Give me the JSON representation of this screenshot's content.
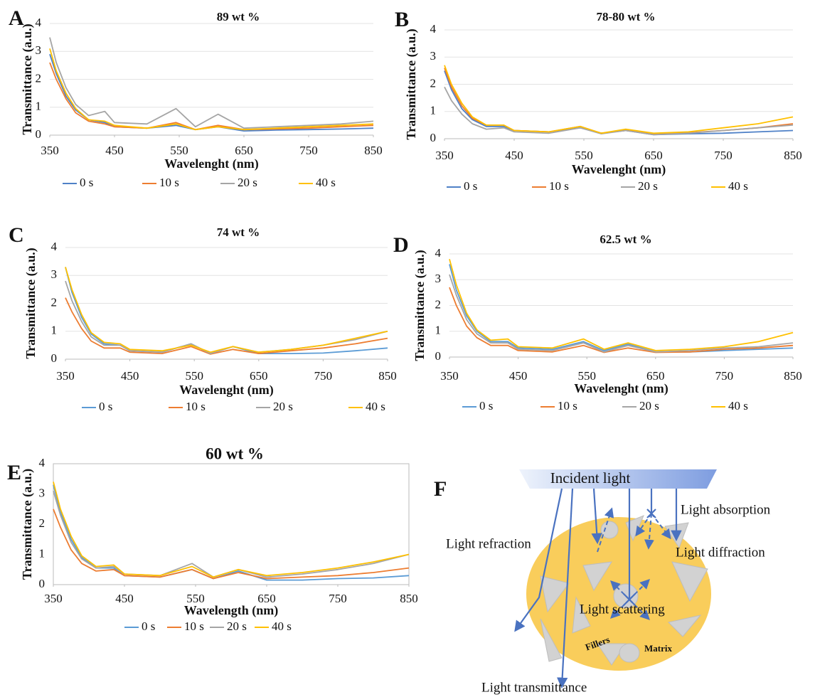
{
  "chart_data": [
    {
      "type": "line",
      "panel_label": "A",
      "title": "89 wt %",
      "xlabel": "Wavelenght (nm)",
      "ylabel": "Transmittance (a.u.)",
      "x": [
        350,
        360,
        375,
        390,
        410,
        435,
        450,
        500,
        545,
        575,
        610,
        650,
        700,
        750,
        800,
        850
      ],
      "series": [
        {
          "name": "0 s",
          "color": "#4f81c7",
          "values": [
            2.9,
            2.2,
            1.4,
            0.9,
            0.55,
            0.45,
            0.3,
            0.25,
            0.35,
            0.2,
            0.3,
            0.15,
            0.18,
            0.2,
            0.22,
            0.25
          ]
        },
        {
          "name": "10 s",
          "color": "#ed7d31",
          "values": [
            2.6,
            2.0,
            1.3,
            0.8,
            0.5,
            0.4,
            0.3,
            0.25,
            0.45,
            0.2,
            0.35,
            0.2,
            0.22,
            0.25,
            0.3,
            0.35
          ]
        },
        {
          "name": "20 s",
          "color": "#a5a5a5",
          "values": [
            3.5,
            2.6,
            1.7,
            1.1,
            0.7,
            0.85,
            0.45,
            0.4,
            0.95,
            0.3,
            0.75,
            0.25,
            0.3,
            0.35,
            0.4,
            0.5
          ]
        },
        {
          "name": "40 s",
          "color": "#ffc000",
          "values": [
            3.1,
            2.3,
            1.5,
            0.95,
            0.55,
            0.5,
            0.35,
            0.25,
            0.4,
            0.2,
            0.3,
            0.2,
            0.25,
            0.3,
            0.35,
            0.4
          ]
        }
      ],
      "xlim": [
        350,
        850
      ],
      "ylim": [
        0,
        4
      ],
      "xticks": [
        350,
        450,
        550,
        650,
        750,
        850
      ],
      "yticks": [
        0,
        1,
        2,
        3,
        4
      ],
      "grid": true,
      "legend": "bottom"
    },
    {
      "type": "line",
      "panel_label": "B",
      "title": "78-80 wt %",
      "xlabel": "Wavelenght (nm)",
      "ylabel": "Transmittance (a.u.)",
      "x": [
        350,
        360,
        375,
        390,
        410,
        435,
        450,
        500,
        545,
        575,
        610,
        650,
        700,
        750,
        800,
        850
      ],
      "series": [
        {
          "name": "0 s",
          "color": "#4f81c7",
          "values": [
            2.5,
            1.8,
            1.1,
            0.7,
            0.45,
            0.45,
            0.3,
            0.25,
            0.4,
            0.2,
            0.3,
            0.15,
            0.18,
            0.2,
            0.25,
            0.3
          ]
        },
        {
          "name": "10 s",
          "color": "#ed7d31",
          "values": [
            2.6,
            1.9,
            1.2,
            0.75,
            0.5,
            0.5,
            0.3,
            0.25,
            0.45,
            0.2,
            0.3,
            0.18,
            0.22,
            0.3,
            0.4,
            0.55
          ]
        },
        {
          "name": "20 s",
          "color": "#a5a5a5",
          "values": [
            1.9,
            1.4,
            0.9,
            0.55,
            0.35,
            0.4,
            0.25,
            0.2,
            0.4,
            0.18,
            0.3,
            0.15,
            0.2,
            0.3,
            0.4,
            0.5
          ]
        },
        {
          "name": "40 s",
          "color": "#ffc000",
          "values": [
            2.7,
            2.0,
            1.3,
            0.8,
            0.5,
            0.5,
            0.3,
            0.25,
            0.45,
            0.2,
            0.35,
            0.2,
            0.25,
            0.4,
            0.55,
            0.8
          ]
        }
      ],
      "xlim": [
        350,
        850
      ],
      "ylim": [
        0,
        4
      ],
      "xticks": [
        350,
        450,
        550,
        650,
        750,
        850
      ],
      "yticks": [
        0,
        1,
        2,
        3,
        4
      ],
      "grid": true,
      "legend": "bottom"
    },
    {
      "type": "line",
      "panel_label": "C",
      "title": "74 wt %",
      "xlabel": "Wavelenght (nm)",
      "ylabel": "Transmittance (a.u.)",
      "x": [
        350,
        360,
        375,
        390,
        410,
        435,
        450,
        500,
        545,
        575,
        610,
        650,
        700,
        750,
        800,
        850
      ],
      "series": [
        {
          "name": "0 s",
          "color": "#5b9bd5",
          "values": [
            3.3,
            2.4,
            1.5,
            0.9,
            0.55,
            0.5,
            0.3,
            0.25,
            0.55,
            0.2,
            0.45,
            0.2,
            0.2,
            0.22,
            0.3,
            0.4
          ]
        },
        {
          "name": "10 s",
          "color": "#ed7d31",
          "values": [
            2.2,
            1.7,
            1.1,
            0.65,
            0.4,
            0.4,
            0.25,
            0.2,
            0.45,
            0.18,
            0.35,
            0.2,
            0.3,
            0.4,
            0.55,
            0.75
          ]
        },
        {
          "name": "20 s",
          "color": "#a5a5a5",
          "values": [
            2.8,
            2.1,
            1.35,
            0.8,
            0.5,
            0.5,
            0.3,
            0.25,
            0.55,
            0.2,
            0.45,
            0.25,
            0.35,
            0.5,
            0.7,
            1.0
          ]
        },
        {
          "name": "40 s",
          "color": "#ffc000",
          "values": [
            3.3,
            2.5,
            1.6,
            0.95,
            0.6,
            0.55,
            0.35,
            0.3,
            0.5,
            0.25,
            0.45,
            0.25,
            0.35,
            0.5,
            0.75,
            1.0
          ]
        }
      ],
      "xlim": [
        350,
        850
      ],
      "ylim": [
        0,
        4
      ],
      "xticks": [
        350,
        450,
        550,
        650,
        750,
        850
      ],
      "yticks": [
        0,
        1,
        2,
        3,
        4
      ],
      "grid": true,
      "legend": "bottom"
    },
    {
      "type": "line",
      "panel_label": "D",
      "title": "62.5 wt %",
      "xlabel": "Wavelenght (nm)",
      "ylabel": "Transmittance (a.u.)",
      "x": [
        350,
        360,
        375,
        390,
        410,
        435,
        450,
        500,
        545,
        575,
        610,
        650,
        700,
        750,
        800,
        850
      ],
      "series": [
        {
          "name": "0 s",
          "color": "#5b9bd5",
          "values": [
            3.6,
            2.6,
            1.6,
            1.0,
            0.6,
            0.6,
            0.35,
            0.3,
            0.6,
            0.25,
            0.5,
            0.2,
            0.2,
            0.25,
            0.3,
            0.35
          ]
        },
        {
          "name": "10 s",
          "color": "#ed7d31",
          "values": [
            2.7,
            2.0,
            1.2,
            0.75,
            0.45,
            0.45,
            0.25,
            0.2,
            0.45,
            0.18,
            0.35,
            0.18,
            0.2,
            0.3,
            0.35,
            0.45
          ]
        },
        {
          "name": "20 s",
          "color": "#a5a5a5",
          "values": [
            3.2,
            2.4,
            1.45,
            0.9,
            0.55,
            0.55,
            0.3,
            0.25,
            0.55,
            0.2,
            0.45,
            0.2,
            0.25,
            0.35,
            0.4,
            0.55
          ]
        },
        {
          "name": "40 s",
          "color": "#ffc000",
          "values": [
            3.8,
            2.8,
            1.7,
            1.05,
            0.65,
            0.7,
            0.4,
            0.35,
            0.7,
            0.3,
            0.55,
            0.25,
            0.3,
            0.4,
            0.6,
            0.95
          ]
        }
      ],
      "xlim": [
        350,
        850
      ],
      "ylim": [
        0,
        4
      ],
      "xticks": [
        350,
        450,
        550,
        650,
        750,
        850
      ],
      "yticks": [
        0,
        1,
        2,
        3,
        4
      ],
      "grid": true,
      "legend": "bottom"
    },
    {
      "type": "line",
      "panel_label": "E",
      "title": "60 wt %",
      "xlabel": "Wavelength (nm)",
      "ylabel": "Transmittance (a.u.)",
      "x": [
        350,
        360,
        375,
        390,
        410,
        435,
        450,
        500,
        545,
        575,
        610,
        650,
        700,
        750,
        800,
        850
      ],
      "series": [
        {
          "name": "0 s",
          "color": "#5b9bd5",
          "values": [
            3.3,
            2.4,
            1.5,
            0.9,
            0.55,
            0.55,
            0.3,
            0.25,
            0.5,
            0.2,
            0.45,
            0.15,
            0.15,
            0.2,
            0.22,
            0.3
          ]
        },
        {
          "name": "10 s",
          "color": "#ed7d31",
          "values": [
            2.5,
            1.9,
            1.15,
            0.7,
            0.45,
            0.5,
            0.3,
            0.25,
            0.5,
            0.2,
            0.4,
            0.2,
            0.25,
            0.3,
            0.4,
            0.55
          ]
        },
        {
          "name": "20 s",
          "color": "#a5a5a5",
          "values": [
            3.1,
            2.3,
            1.4,
            0.85,
            0.55,
            0.6,
            0.35,
            0.3,
            0.7,
            0.25,
            0.5,
            0.25,
            0.35,
            0.5,
            0.7,
            1.0
          ]
        },
        {
          "name": "40 s",
          "color": "#ffc000",
          "values": [
            3.4,
            2.5,
            1.6,
            0.95,
            0.6,
            0.65,
            0.35,
            0.3,
            0.6,
            0.25,
            0.5,
            0.3,
            0.4,
            0.55,
            0.75,
            1.0
          ]
        }
      ],
      "xlim": [
        350,
        850
      ],
      "ylim": [
        0,
        4
      ],
      "xticks": [
        350,
        450,
        550,
        650,
        750,
        850
      ],
      "yticks": [
        0,
        1,
        2,
        3,
        4
      ],
      "grid": false,
      "legend": "bottom"
    }
  ],
  "diagram": {
    "panel_label": "F",
    "incident": "Incident light",
    "absorption": "Light absorption",
    "refraction": "Light refraction",
    "diffraction": "Light diffraction",
    "scattering": "Light scattering",
    "fillers": "Fillers",
    "matrix": "Matrix",
    "transmittance": "Light transmittance"
  }
}
